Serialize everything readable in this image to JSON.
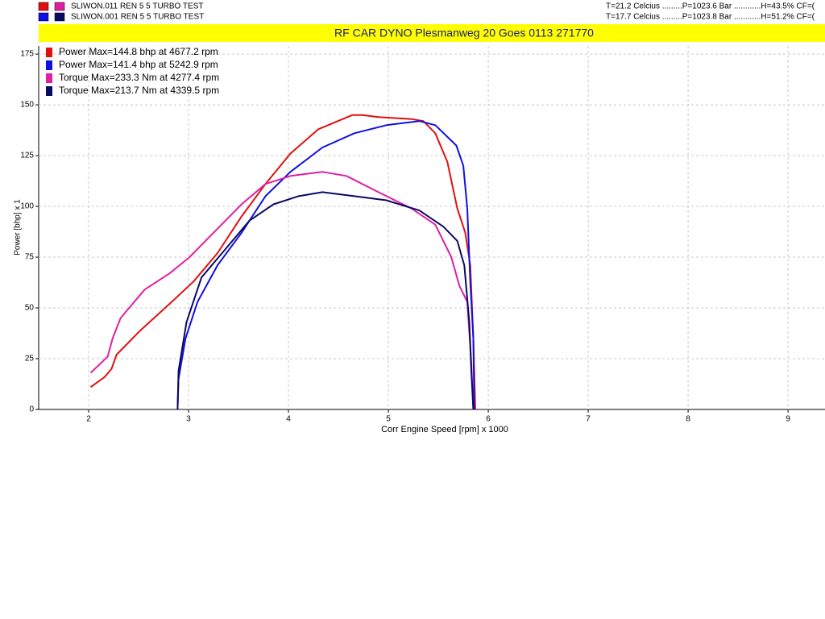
{
  "chart_data": {
    "type": "line",
    "title": "RF CAR DYNO  Plesmanweg 20 Goes  0113 271770",
    "runs": [
      {
        "label": "SLIWON.011 REN 5   5 TURBO TEST",
        "conditions": "T=21.2 Celcius .........P=1023.6 Bar ............H=43.5% CF=("
      },
      {
        "label": "SLIWON.001 REN 5   5 TURBO TEST",
        "conditions": "T=17.7 Celcius .........P=1023.8 Bar ............H=51.2% CF=("
      }
    ],
    "x_label": "Corr Engine Speed [rpm] x 1000",
    "y_label": "Power [bhp] x 1",
    "xlim": [
      1.5,
      9.37
    ],
    "ylim": [
      0,
      179
    ],
    "xticks": [
      2,
      3,
      4,
      5,
      6,
      7,
      8,
      9
    ],
    "yticks": [
      0,
      25,
      50,
      75,
      100,
      125,
      150,
      175
    ],
    "grid": true,
    "legend_position": "upper left",
    "series": [
      {
        "name": "Power  Max=144.8 bhp at 4677.2 rpm",
        "color": "#e01010",
        "x": [
          2.02,
          2.16,
          2.23,
          2.28,
          2.52,
          2.81,
          3.05,
          3.29,
          3.53,
          3.77,
          4.02,
          4.3,
          4.64,
          4.74,
          4.9,
          5.23,
          5.35,
          5.47,
          5.59,
          5.69,
          5.77,
          5.82,
          5.85,
          5.87
        ],
        "values": [
          11,
          16,
          20,
          27,
          39,
          52,
          63,
          77,
          95,
          111,
          126,
          138,
          145,
          145,
          144,
          143,
          142,
          136,
          122,
          99,
          87,
          71,
          35,
          0
        ]
      },
      {
        "name": "Power  Max=141.4 bhp at 5242.9 rpm",
        "color": "#1010e0",
        "x": [
          2.89,
          2.9,
          2.97,
          3.09,
          3.29,
          3.53,
          3.77,
          4.02,
          4.34,
          4.66,
          4.98,
          5.31,
          5.47,
          5.68,
          5.75,
          5.79,
          5.82,
          5.85,
          5.86
        ],
        "values": [
          0,
          15,
          35,
          53,
          71,
          87,
          105,
          117,
          129,
          136,
          140,
          142,
          140,
          130,
          120,
          99,
          63,
          35,
          0
        ]
      },
      {
        "name": "Torque  Max=233.3 Nm at 4277.4 rpm",
        "color": "#e020a0",
        "x": [
          2.02,
          2.19,
          2.24,
          2.32,
          2.56,
          2.81,
          3.01,
          3.25,
          3.53,
          3.77,
          4.02,
          4.34,
          4.58,
          4.9,
          5.23,
          5.47,
          5.63,
          5.71,
          5.79,
          5.83,
          5.85
        ],
        "values": [
          18,
          26,
          35,
          45,
          59,
          67,
          75,
          87,
          101,
          111,
          115,
          117,
          115,
          107,
          99,
          91,
          75,
          61,
          53,
          23,
          0
        ]
      },
      {
        "name": "Torque  Max=213.7 Nm at 4339.5 rpm",
        "color": "#0a0a60",
        "x": [
          2.89,
          2.9,
          2.98,
          3.13,
          3.37,
          3.61,
          3.85,
          4.1,
          4.34,
          4.66,
          4.98,
          5.31,
          5.55,
          5.69,
          5.76,
          5.81,
          5.83,
          5.85
        ],
        "values": [
          0,
          19,
          43,
          65,
          79,
          93,
          101,
          105,
          107,
          105,
          103,
          98,
          90,
          83,
          71,
          43,
          19,
          0
        ]
      }
    ]
  }
}
